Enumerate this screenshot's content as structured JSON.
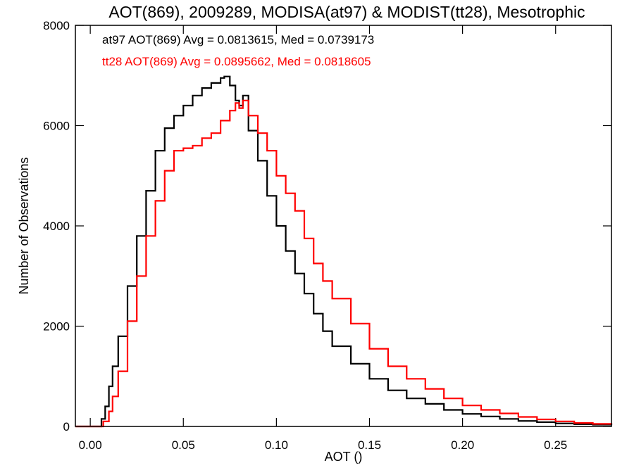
{
  "chart_data": {
    "type": "line",
    "step": true,
    "title": "AOT(869), 2009289, MODISA(at97) & MODIST(tt28), Mesotrophic",
    "xlabel": "AOT ()",
    "ylabel": "Number of Observations",
    "xlim": [
      -0.008,
      0.28
    ],
    "ylim": [
      0,
      8000
    ],
    "xticks": [
      0.0,
      0.05,
      0.1,
      0.15,
      0.2,
      0.25
    ],
    "xtick_labels": [
      "0.00",
      "0.05",
      "0.10",
      "0.15",
      "0.20",
      "0.25"
    ],
    "yticks": [
      0,
      2000,
      4000,
      6000,
      8000
    ],
    "ytick_labels": [
      "0",
      "2000",
      "4000",
      "6000",
      "8000"
    ],
    "grid": false,
    "legend_position": "top-left",
    "series": [
      {
        "name": "at97",
        "color": "#000000",
        "legend": "at97 AOT(869) Avg = 0.0813615, Med = 0.0739173",
        "x": [
          -0.008,
          0.004,
          0.006,
          0.008,
          0.01,
          0.012,
          0.015,
          0.02,
          0.025,
          0.03,
          0.035,
          0.04,
          0.045,
          0.05,
          0.055,
          0.06,
          0.065,
          0.07,
          0.072,
          0.075,
          0.078,
          0.08,
          0.082,
          0.085,
          0.09,
          0.095,
          0.1,
          0.105,
          0.11,
          0.115,
          0.12,
          0.125,
          0.13,
          0.14,
          0.15,
          0.16,
          0.17,
          0.18,
          0.19,
          0.2,
          0.21,
          0.22,
          0.23,
          0.24,
          0.25,
          0.26,
          0.27,
          0.28
        ],
        "y": [
          0,
          0,
          150,
          400,
          800,
          1200,
          1800,
          2800,
          3800,
          4700,
          5500,
          5950,
          6200,
          6400,
          6600,
          6750,
          6850,
          6950,
          6980,
          6800,
          6500,
          6400,
          6600,
          5900,
          5300,
          4600,
          4000,
          3500,
          3050,
          2650,
          2250,
          1900,
          1600,
          1250,
          950,
          720,
          560,
          450,
          330,
          250,
          200,
          150,
          110,
          85,
          60,
          45,
          35,
          25
        ]
      },
      {
        "name": "tt28",
        "color": "#ff0000",
        "legend": "tt28 AOT(869) Avg = 0.0895662, Med = 0.0818605",
        "x": [
          -0.008,
          0.005,
          0.007,
          0.01,
          0.012,
          0.015,
          0.02,
          0.025,
          0.03,
          0.035,
          0.04,
          0.045,
          0.05,
          0.055,
          0.06,
          0.065,
          0.07,
          0.075,
          0.078,
          0.08,
          0.082,
          0.085,
          0.09,
          0.095,
          0.1,
          0.105,
          0.11,
          0.115,
          0.12,
          0.125,
          0.13,
          0.14,
          0.15,
          0.16,
          0.17,
          0.18,
          0.19,
          0.2,
          0.21,
          0.22,
          0.23,
          0.24,
          0.25,
          0.26,
          0.27,
          0.28
        ],
        "y": [
          0,
          0,
          100,
          300,
          600,
          1100,
          2100,
          3000,
          3800,
          4500,
          5100,
          5500,
          5550,
          5600,
          5750,
          5850,
          6100,
          6300,
          6450,
          6350,
          6500,
          6200,
          5850,
          5500,
          5000,
          4650,
          4300,
          3750,
          3250,
          2900,
          2550,
          2050,
          1550,
          1200,
          950,
          750,
          560,
          420,
          330,
          260,
          190,
          140,
          100,
          70,
          50,
          40
        ]
      }
    ]
  }
}
